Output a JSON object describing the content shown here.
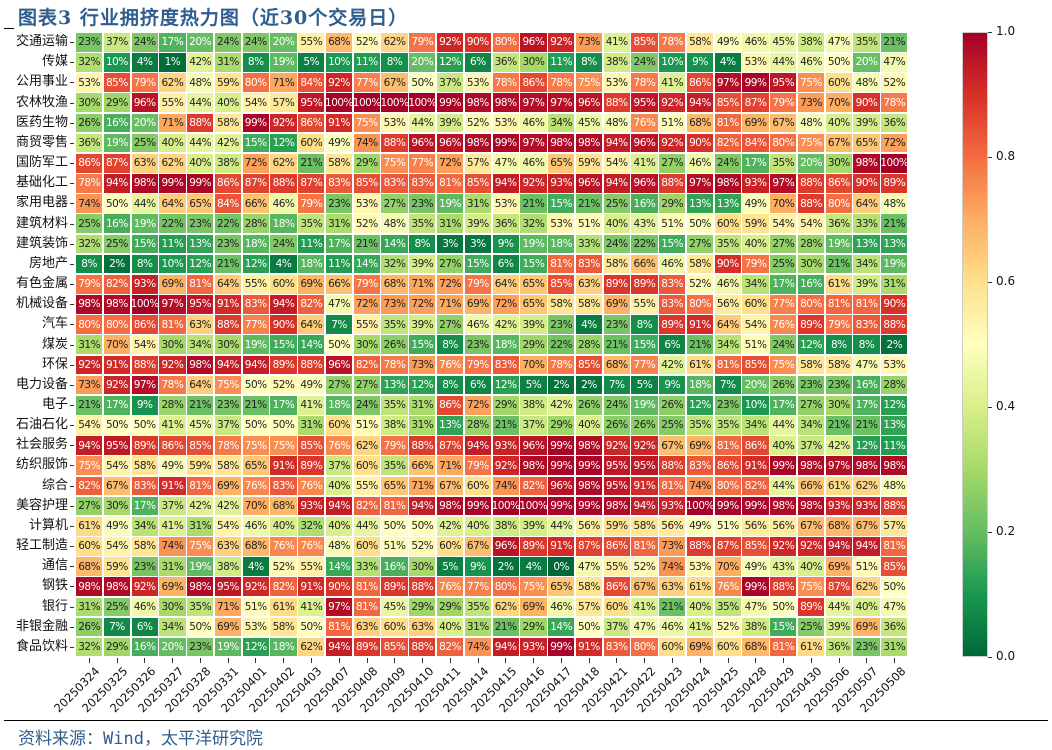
{
  "title": "图表3  行业拥挤度热力图（近30个交易日）",
  "source": "资料来源：Wind，太平洋研究院",
  "chart_data": {
    "type": "heatmap",
    "title": "图表3  行业拥挤度热力图（近30个交易日）",
    "colormap": "RdYlGn_r",
    "value_range": [
      0,
      1
    ],
    "colorbar_ticks": [
      "0.0",
      "0.2",
      "0.4",
      "0.6",
      "0.8",
      "1.0"
    ],
    "x": [
      "20250324",
      "20250325",
      "20250326",
      "20250327",
      "20250328",
      "20250331",
      "20250401",
      "20250402",
      "20250403",
      "20250407",
      "20250408",
      "20250409",
      "20250410",
      "20250411",
      "20250414",
      "20250415",
      "20250416",
      "20250417",
      "20250418",
      "20250421",
      "20250422",
      "20250423",
      "20250424",
      "20250425",
      "20250428",
      "20250429",
      "20250430",
      "20250506",
      "20250507",
      "20250508"
    ],
    "y": [
      "交通运输",
      "传媒",
      "公用事业",
      "农林牧渔",
      "医药生物",
      "商贸零售",
      "国防军工",
      "基础化工",
      "家用电器",
      "建筑材料",
      "建筑装饰",
      "房地产",
      "有色金属",
      "机械设备",
      "汽车",
      "煤炭",
      "环保",
      "电力设备",
      "电子",
      "石油石化",
      "社会服务",
      "纺织服饰",
      "综合",
      "美容护理",
      "计算机",
      "轻工制造",
      "通信",
      "钢铁",
      "银行",
      "非银金融",
      "食品饮料"
    ],
    "values_percent": [
      [
        23,
        37,
        24,
        17,
        20,
        24,
        24,
        20,
        55,
        68,
        52,
        62,
        79,
        92,
        90,
        80,
        96,
        92,
        73,
        41,
        85,
        78,
        58,
        49,
        46,
        45,
        38,
        47,
        35,
        21
      ],
      [
        32,
        10,
        4,
        1,
        42,
        31,
        8,
        19,
        5,
        10,
        11,
        8,
        20,
        12,
        6,
        36,
        30,
        11,
        8,
        38,
        24,
        10,
        9,
        4,
        53,
        44,
        46,
        50,
        20,
        47
      ],
      [
        53,
        85,
        79,
        62,
        48,
        59,
        80,
        71,
        84,
        92,
        77,
        67,
        50,
        37,
        53,
        78,
        86,
        78,
        75,
        53,
        78,
        41,
        86,
        97,
        99,
        95,
        75,
        60,
        48,
        52
      ],
      [
        30,
        29,
        96,
        55,
        44,
        40,
        54,
        57,
        95,
        100,
        100,
        100,
        100,
        99,
        98,
        98,
        97,
        97,
        96,
        88,
        95,
        92,
        94,
        85,
        87,
        79,
        73,
        70,
        90,
        78
      ],
      [
        26,
        16,
        20,
        71,
        88,
        58,
        99,
        92,
        86,
        91,
        75,
        53,
        44,
        39,
        52,
        53,
        46,
        34,
        45,
        48,
        76,
        51,
        68,
        81,
        69,
        67,
        48,
        40,
        39,
        36
      ],
      [
        36,
        19,
        25,
        40,
        44,
        42,
        15,
        12,
        60,
        49,
        74,
        88,
        96,
        96,
        98,
        99,
        97,
        98,
        98,
        94,
        96,
        92,
        90,
        82,
        84,
        80,
        75,
        67,
        65,
        72
      ],
      [
        86,
        87,
        63,
        62,
        40,
        38,
        72,
        62,
        21,
        58,
        29,
        75,
        77,
        72,
        57,
        47,
        46,
        65,
        59,
        54,
        41,
        27,
        46,
        24,
        17,
        35,
        20,
        30,
        98,
        100
      ],
      [
        78,
        94,
        98,
        99,
        99,
        86,
        87,
        88,
        87,
        83,
        85,
        83,
        83,
        81,
        85,
        94,
        92,
        93,
        96,
        94,
        96,
        88,
        97,
        98,
        93,
        97,
        88,
        86,
        90,
        89
      ],
      [
        74,
        50,
        44,
        64,
        65,
        84,
        66,
        46,
        79,
        23,
        53,
        27,
        23,
        19,
        31,
        53,
        21,
        15,
        21,
        25,
        16,
        29,
        13,
        13,
        49,
        70,
        88,
        80,
        64,
        48
      ],
      [
        25,
        16,
        19,
        22,
        23,
        22,
        28,
        18,
        35,
        31,
        52,
        48,
        35,
        31,
        39,
        36,
        32,
        53,
        51,
        40,
        43,
        51,
        50,
        60,
        59,
        54,
        54,
        36,
        33,
        21
      ],
      [
        32,
        25,
        15,
        11,
        13,
        23,
        18,
        24,
        11,
        17,
        21,
        14,
        8,
        3,
        3,
        9,
        19,
        18,
        33,
        24,
        22,
        15,
        27,
        35,
        40,
        27,
        28,
        19,
        13,
        13
      ],
      [
        8,
        2,
        8,
        10,
        12,
        21,
        12,
        4,
        18,
        11,
        14,
        32,
        39,
        27,
        15,
        6,
        15,
        81,
        83,
        58,
        66,
        46,
        58,
        90,
        79,
        25,
        30,
        21,
        34,
        19
      ],
      [
        79,
        82,
        93,
        69,
        81,
        64,
        55,
        60,
        69,
        66,
        79,
        68,
        71,
        72,
        79,
        64,
        65,
        85,
        63,
        89,
        89,
        83,
        52,
        46,
        34,
        17,
        16,
        61,
        39,
        31
      ],
      [
        98,
        98,
        100,
        97,
        95,
        91,
        83,
        94,
        82,
        47,
        72,
        73,
        72,
        71,
        69,
        72,
        65,
        58,
        58,
        69,
        55,
        83,
        80,
        56,
        60,
        77,
        80,
        81,
        81,
        90
      ],
      [
        80,
        80,
        86,
        81,
        63,
        88,
        77,
        90,
        64,
        7,
        55,
        35,
        39,
        27,
        46,
        42,
        39,
        23,
        4,
        23,
        8,
        89,
        91,
        64,
        54,
        76,
        89,
        79,
        83,
        88
      ],
      [
        31,
        70,
        54,
        30,
        34,
        30,
        19,
        15,
        14,
        50,
        30,
        26,
        15,
        8,
        23,
        18,
        29,
        22,
        28,
        21,
        15,
        6,
        21,
        34,
        51,
        24,
        12,
        8,
        8,
        2
      ],
      [
        92,
        91,
        88,
        92,
        98,
        94,
        94,
        89,
        88,
        96,
        82,
        78,
        73,
        76,
        79,
        83,
        70,
        78,
        85,
        68,
        77,
        42,
        61,
        81,
        85,
        75,
        58,
        58,
        47,
        53
      ],
      [
        73,
        92,
        97,
        78,
        64,
        75,
        50,
        52,
        49,
        27,
        27,
        13,
        12,
        8,
        6,
        12,
        5,
        2,
        2,
        7,
        5,
        9,
        18,
        7,
        20,
        26,
        23,
        23,
        16,
        28
      ],
      [
        21,
        17,
        9,
        28,
        21,
        23,
        21,
        17,
        41,
        18,
        24,
        35,
        31,
        86,
        72,
        29,
        38,
        42,
        26,
        24,
        19,
        26,
        12,
        23,
        10,
        17,
        27,
        30,
        17,
        12
      ],
      [
        54,
        50,
        50,
        41,
        45,
        37,
        50,
        50,
        31,
        60,
        51,
        38,
        31,
        13,
        28,
        21,
        37,
        29,
        40,
        26,
        26,
        25,
        35,
        35,
        34,
        44,
        34,
        21,
        21,
        13
      ],
      [
        94,
        95,
        89,
        86,
        85,
        78,
        75,
        75,
        85,
        76,
        62,
        79,
        88,
        87,
        94,
        93,
        96,
        99,
        98,
        92,
        92,
        67,
        69,
        81,
        86,
        40,
        37,
        42,
        12,
        11
      ],
      [
        75,
        54,
        58,
        49,
        59,
        58,
        65,
        91,
        89,
        37,
        60,
        35,
        66,
        71,
        79,
        92,
        98,
        99,
        99,
        95,
        95,
        88,
        83,
        86,
        91,
        99,
        98,
        97,
        98,
        98
      ],
      [
        82,
        67,
        83,
        91,
        81,
        69,
        76,
        83,
        76,
        40,
        55,
        65,
        71,
        67,
        60,
        74,
        82,
        96,
        98,
        95,
        91,
        81,
        74,
        80,
        82,
        44,
        66,
        61,
        62,
        48
      ],
      [
        27,
        30,
        17,
        37,
        42,
        42,
        70,
        68,
        93,
        94,
        82,
        81,
        94,
        98,
        99,
        100,
        100,
        99,
        99,
        98,
        94,
        93,
        100,
        99,
        99,
        98,
        98,
        93,
        93,
        88
      ],
      [
        61,
        49,
        34,
        41,
        31,
        54,
        46,
        40,
        32,
        40,
        44,
        50,
        50,
        42,
        40,
        38,
        39,
        44,
        56,
        59,
        58,
        56,
        49,
        51,
        56,
        56,
        67,
        68,
        67,
        57
      ],
      [
        60,
        54,
        58,
        74,
        75,
        63,
        68,
        76,
        76,
        48,
        60,
        51,
        52,
        60,
        67,
        96,
        89,
        91,
        87,
        86,
        81,
        73,
        88,
        87,
        85,
        92,
        92,
        94,
        94,
        81
      ],
      [
        68,
        59,
        23,
        31,
        19,
        38,
        4,
        52,
        55,
        14,
        33,
        16,
        30,
        5,
        9,
        2,
        4,
        0,
        47,
        55,
        52,
        74,
        53,
        70,
        49,
        43,
        40,
        69,
        51,
        85
      ],
      [
        98,
        98,
        92,
        69,
        98,
        95,
        92,
        82,
        91,
        90,
        81,
        89,
        88,
        76,
        77,
        80,
        75,
        65,
        58,
        86,
        67,
        63,
        61,
        76,
        99,
        88,
        75,
        87,
        62,
        50
      ],
      [
        31,
        25,
        46,
        30,
        35,
        71,
        51,
        61,
        41,
        97,
        81,
        45,
        29,
        29,
        35,
        62,
        69,
        46,
        57,
        60,
        41,
        21,
        40,
        35,
        47,
        50,
        89,
        44,
        40,
        47
      ],
      [
        26,
        7,
        6,
        34,
        50,
        69,
        53,
        58,
        50,
        81,
        63,
        60,
        63,
        40,
        31,
        21,
        29,
        14,
        50,
        37,
        47,
        46,
        41,
        52,
        38,
        15,
        25,
        39,
        69,
        36
      ],
      [
        32,
        29,
        16,
        20,
        23,
        19,
        12,
        18,
        62,
        94,
        89,
        85,
        88,
        82,
        74,
        94,
        93,
        99,
        91,
        83,
        80,
        60,
        69,
        60,
        68,
        81,
        61,
        36,
        23,
        31
      ]
    ]
  }
}
